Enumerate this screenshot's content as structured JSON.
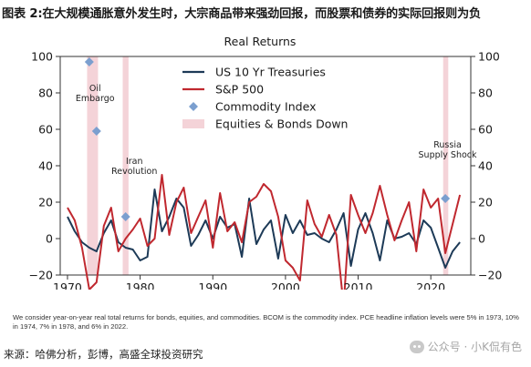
{
  "heading": "图表 2:在大规模通胀意外发生时，大宗商品带来强劲回报，而股票和债券的实际回报则为负",
  "note": "We consider year-on-year real total returns for bonds, equities, and commodities. BCOM is the commodity index. PCE headline inflation levels were 5% in 1973, 10% in 1974, 7% in 1978, and 6% in 2022.",
  "source": "来源：哈佛分析，彭博，高盛全球投资研究",
  "watermark": "公众号 · 小K侃有色",
  "colors": {
    "treasuries": "#1d3a57",
    "sp500": "#c0282f",
    "commodity": "#7b9fcf",
    "band": "#f4d3d8"
  },
  "chart_data": {
    "type": "line",
    "title": "Real Returns",
    "xlabel": "",
    "ylabel": "",
    "xlim": [
      1969,
      2025.5
    ],
    "ylim": [
      -20,
      100
    ],
    "x_ticks": [
      1970,
      1980,
      1990,
      2000,
      2010,
      2020
    ],
    "y_ticks": [
      -20,
      0,
      20,
      40,
      60,
      80,
      100
    ],
    "y_tick_labels_left": [
      "−20",
      "0",
      "20",
      "40",
      "60",
      "80",
      "100"
    ],
    "y_tick_labels_right": [
      "−20",
      "0",
      "20",
      "40",
      "60",
      "80",
      "100"
    ],
    "legend_position": "top-center",
    "series": [
      {
        "name": "US 10 Yr Treasuries",
        "kind": "line",
        "color_key": "treasuries",
        "x": [
          1970,
          1971,
          1972,
          1973,
          1974,
          1975,
          1976,
          1977,
          1978,
          1979,
          1980,
          1981,
          1982,
          1983,
          1984,
          1985,
          1986,
          1987,
          1988,
          1989,
          1990,
          1991,
          1992,
          1993,
          1994,
          1995,
          1996,
          1997,
          1998,
          1999,
          2000,
          2001,
          2002,
          2003,
          2004,
          2005,
          2006,
          2007,
          2008,
          2009,
          2010,
          2011,
          2012,
          2013,
          2014,
          2015,
          2016,
          2017,
          2018,
          2019,
          2020,
          2021,
          2022,
          2023,
          2024
        ],
        "y": [
          12,
          4,
          -2,
          -5,
          -7,
          3,
          10,
          -2,
          -5,
          -6,
          -12,
          -10,
          27,
          4,
          12,
          22,
          17,
          -4,
          2,
          10,
          0,
          12,
          6,
          8,
          -10,
          22,
          -3,
          5,
          10,
          -11,
          13,
          3,
          10,
          2,
          3,
          0,
          -2,
          5,
          14,
          -15,
          5,
          14,
          3,
          -12,
          10,
          0,
          1,
          3,
          -3,
          10,
          6,
          -5,
          -16,
          -7,
          -2
        ]
      },
      {
        "name": "S&P 500",
        "kind": "line",
        "color_key": "sp500",
        "x": [
          1970,
          1971,
          1972,
          1973,
          1974,
          1975,
          1976,
          1977,
          1978,
          1979,
          1980,
          1981,
          1982,
          1983,
          1984,
          1985,
          1986,
          1987,
          1988,
          1989,
          1990,
          1991,
          1992,
          1993,
          1994,
          1995,
          1996,
          1997,
          1998,
          1999,
          2000,
          2001,
          2002,
          2003,
          2004,
          2005,
          2006,
          2007,
          2008,
          2009,
          2010,
          2011,
          2012,
          2013,
          2014,
          2015,
          2016,
          2017,
          2018,
          2019,
          2020,
          2021,
          2022,
          2023,
          2024
        ],
        "y": [
          17,
          10,
          -5,
          -28,
          -24,
          7,
          17,
          -7,
          0,
          5,
          11,
          -4,
          0,
          35,
          2,
          20,
          28,
          3,
          12,
          21,
          -5,
          25,
          4,
          9,
          -2,
          20,
          23,
          30,
          26,
          12,
          -12,
          -16,
          -23,
          21,
          8,
          1,
          13,
          2,
          -37,
          24,
          13,
          3,
          14,
          29,
          13,
          -1,
          10,
          20,
          -7,
          27,
          17,
          22,
          -8,
          8,
          24
        ]
      },
      {
        "name": "Commodity Index",
        "kind": "marker",
        "color_key": "commodity",
        "x": [
          1973,
          1974,
          1978,
          2022
        ],
        "y": [
          97,
          59,
          12,
          22
        ]
      },
      {
        "name": "Equities & Bonds Down",
        "kind": "band",
        "color_key": "band",
        "ranges": [
          [
            1972.7,
            1974.2
          ],
          [
            1977.6,
            1978.4
          ],
          [
            2021.7,
            2022.4
          ]
        ]
      }
    ],
    "annotations": [
      {
        "lines": [
          "Oil",
          "Embargo"
        ],
        "x": 1973.8,
        "y": 81
      },
      {
        "lines": [
          "Iran",
          "Revolution"
        ],
        "x": 1979.2,
        "y": 41
      },
      {
        "lines": [
          "Russia",
          "Supply Shock"
        ],
        "x": 2022.3,
        "y": 50
      }
    ]
  }
}
